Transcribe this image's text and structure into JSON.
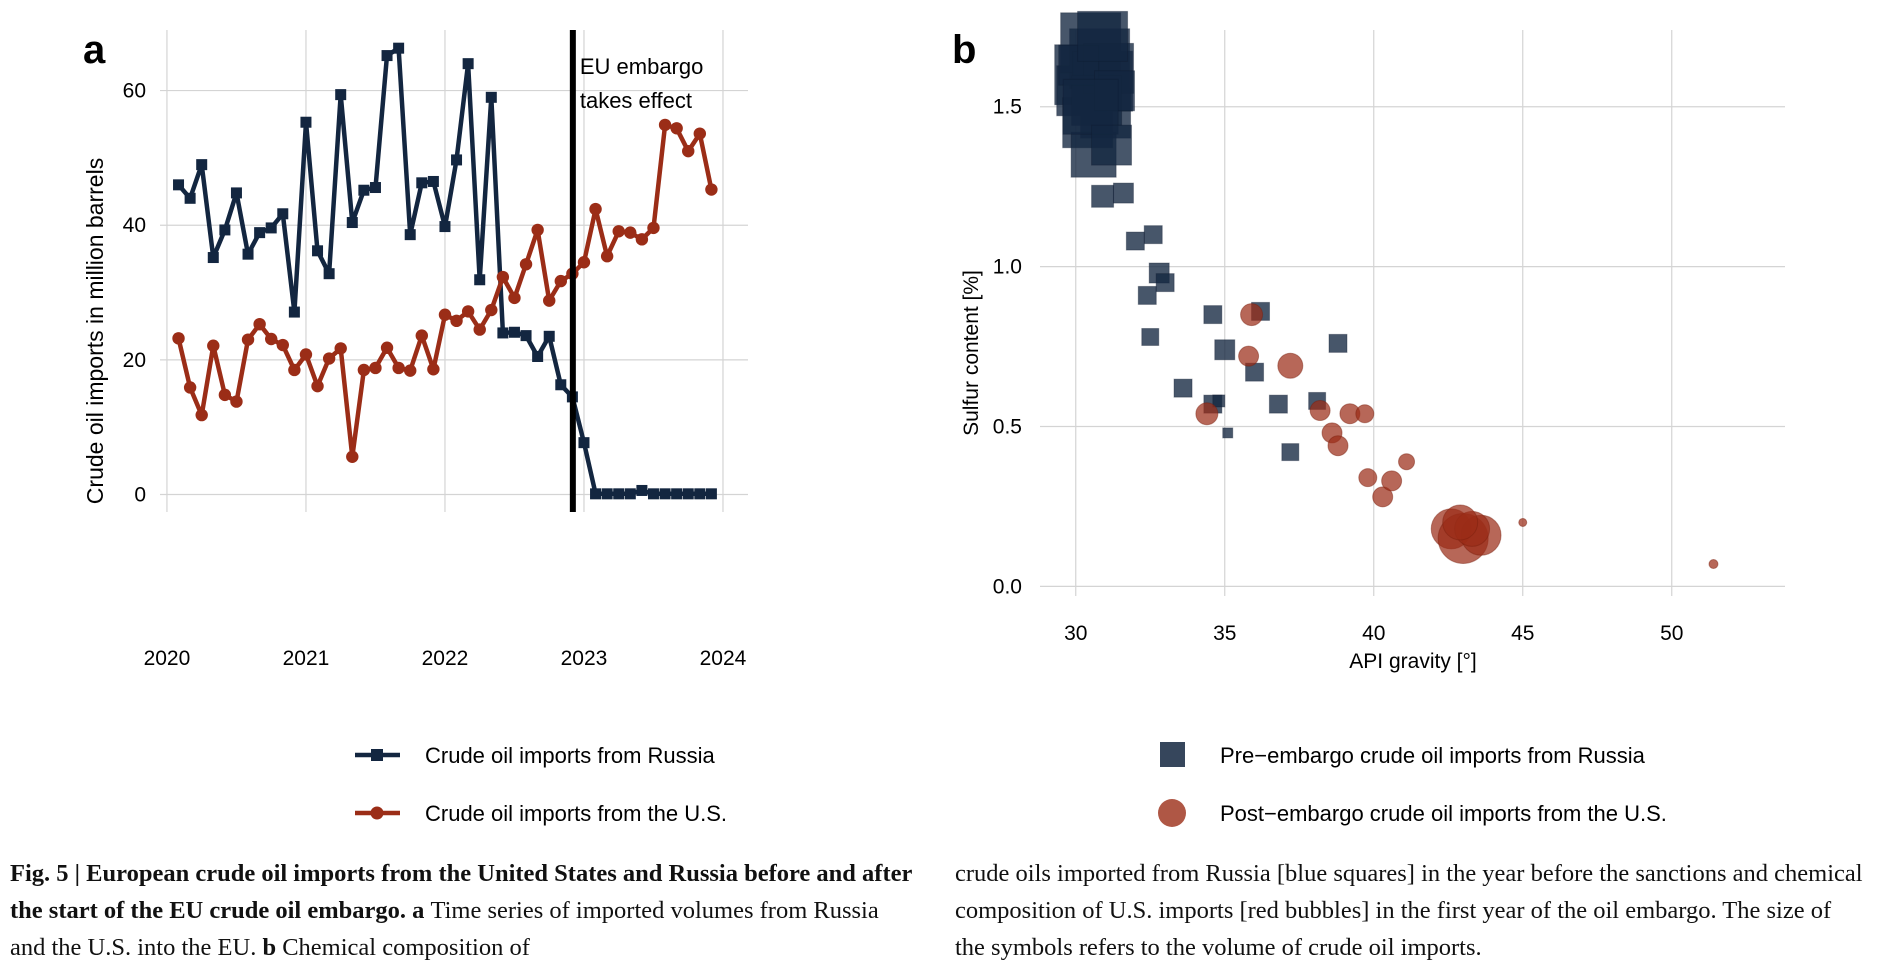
{
  "figure": {
    "caption": {
      "fig_label": "Fig. 5 | ",
      "title": "European crude oil imports from the United States and Russia before and after the start of the EU crude oil embargo.",
      "a_label": "a",
      "a_text": "Time series of imported volumes from Russia and the U.S. into the EU.",
      "b_label": "b",
      "b_text": "Chemical composition of crude oils imported from Russia [blue squares] in the year before the sanctions and chemical composition of U.S. imports [red bubbles] in the first year of the oil embargo. The size of the symbols refers to the volume of crude oil imports."
    }
  },
  "colors": {
    "russia": "#132640",
    "us": "#9b2d17",
    "grid": "#d4d4d4"
  },
  "chart_data": [
    {
      "panel_label": "a",
      "type": "line",
      "ylabel": "Crude oil imports in million barrels",
      "xlim": [
        2019.95,
        2024.18
      ],
      "ylim": [
        -2.6,
        69
      ],
      "yticks": [
        0,
        20,
        40,
        60
      ],
      "xticks": [
        2020,
        2021,
        2022,
        2023,
        2024
      ],
      "grid": true,
      "legend_position": "bottom",
      "x": [
        2020.0833,
        2020.1667,
        2020.25,
        2020.3333,
        2020.4167,
        2020.5,
        2020.5833,
        2020.6667,
        2020.75,
        2020.8333,
        2020.9167,
        2021.0,
        2021.0833,
        2021.1667,
        2021.25,
        2021.3333,
        2021.4167,
        2021.5,
        2021.5833,
        2021.6667,
        2021.75,
        2021.8333,
        2021.9167,
        2022.0,
        2022.0833,
        2022.1667,
        2022.25,
        2022.3333,
        2022.4167,
        2022.5,
        2022.5833,
        2022.6667,
        2022.75,
        2022.8333,
        2022.9167,
        2023.0,
        2023.0833,
        2023.1667,
        2023.25,
        2023.3333,
        2023.4167,
        2023.5,
        2023.5833,
        2023.6667,
        2023.75,
        2023.8333,
        2023.9167
      ],
      "series": [
        {
          "name": "Crude oil imports from Russia",
          "marker": "square",
          "values": [
            46,
            44,
            49,
            35.2,
            39.3,
            44.8,
            35.7,
            38.9,
            39.6,
            41.7,
            27.1,
            55.3,
            36.2,
            32.8,
            59.4,
            40.4,
            45.2,
            45.6,
            65.2,
            66.3,
            38.6,
            46.3,
            46.5,
            39.8,
            49.7,
            64,
            31.9,
            59,
            24,
            24.1,
            23.6,
            20.5,
            23.5,
            16.3,
            14.5,
            7.7,
            0.1,
            0.1,
            0.1,
            0.1,
            0.6,
            0.1,
            0.1,
            0.1,
            0.1,
            0.1,
            0.1
          ]
        },
        {
          "name": "Crude oil imports from the U.S.",
          "marker": "circle",
          "values": [
            23.2,
            15.9,
            11.8,
            22.1,
            14.8,
            13.8,
            23,
            25.3,
            23.1,
            22.2,
            18.5,
            20.8,
            16.1,
            20.2,
            21.7,
            5.6,
            18.5,
            18.8,
            21.8,
            18.8,
            18.4,
            23.6,
            18.6,
            26.7,
            25.8,
            27.2,
            24.5,
            27.4,
            32.3,
            29.2,
            34.2,
            39.3,
            28.8,
            31.7,
            32.8,
            34.5,
            42.4,
            35.4,
            39.1,
            38.9,
            37.9,
            39.6,
            54.9,
            54.4,
            51,
            53.6,
            45.3
          ]
        }
      ],
      "annotation": {
        "x": 2022.92,
        "label_line1": "EU embargo",
        "label_line2": "takes effect"
      }
    },
    {
      "panel_label": "b",
      "type": "scatter",
      "xlabel": "API gravity [°]",
      "ylabel": "Sulfur content [%]",
      "xlim": [
        28.8,
        53.8
      ],
      "ylim": [
        -0.03,
        1.74
      ],
      "xticks": [
        30,
        35,
        40,
        45,
        50
      ],
      "yticks": [
        0.0,
        0.5,
        1.0,
        1.5
      ],
      "ytick_labels": [
        "0.0",
        "0.5",
        "1.0",
        "1.5"
      ],
      "grid": true,
      "legend_position": "bottom",
      "size_encodes": "volume of crude oil imports",
      "series": [
        {
          "name": "Pre−embargo crude oil imports from Russia",
          "marker": "square",
          "points": [
            [
              30.3,
              1.6,
              6
            ],
            [
              30.8,
              1.65,
              6
            ],
            [
              30.2,
              1.55,
              5
            ],
            [
              31.0,
              1.48,
              5
            ],
            [
              30.5,
              1.7,
              6
            ],
            [
              30.9,
              1.58,
              6
            ],
            [
              30.4,
              1.45,
              5
            ],
            [
              31.1,
              1.62,
              5
            ],
            [
              30.7,
              1.52,
              5
            ],
            [
              30.1,
              1.63,
              4
            ],
            [
              30.6,
              1.35,
              4.5
            ],
            [
              31.3,
              1.55,
              4
            ],
            [
              30.9,
              1.72,
              5
            ],
            [
              30.5,
              1.5,
              5.5
            ],
            [
              31.2,
              1.38,
              4
            ],
            [
              30.9,
              1.22,
              2.2
            ],
            [
              31.6,
              1.23,
              2
            ],
            [
              32.6,
              1.1,
              1.8
            ],
            [
              32.0,
              1.08,
              1.8
            ],
            [
              32.8,
              0.98,
              2
            ],
            [
              32.4,
              0.91,
              1.8
            ],
            [
              33.0,
              0.95,
              1.8
            ],
            [
              34.6,
              0.85,
              1.8
            ],
            [
              36.2,
              0.86,
              1.8
            ],
            [
              32.5,
              0.78,
              1.7
            ],
            [
              35.0,
              0.74,
              2
            ],
            [
              36.0,
              0.67,
              1.8
            ],
            [
              38.8,
              0.76,
              1.8
            ],
            [
              33.6,
              0.62,
              1.8
            ],
            [
              34.6,
              0.57,
              1.8
            ],
            [
              35.1,
              0.48,
              1
            ],
            [
              34.8,
              0.58,
              1.2
            ],
            [
              36.8,
              0.57,
              1.8
            ],
            [
              38.1,
              0.58,
              1.7
            ],
            [
              37.2,
              0.42,
              1.7
            ]
          ]
        },
        {
          "name": "Post−embargo crude oil imports from the U.S.",
          "marker": "circle",
          "points": [
            [
              35.9,
              0.85,
              2.2
            ],
            [
              35.8,
              0.72,
              2
            ],
            [
              37.2,
              0.69,
              2.5
            ],
            [
              34.4,
              0.54,
              2.2
            ],
            [
              38.2,
              0.55,
              2
            ],
            [
              38.6,
              0.48,
              2
            ],
            [
              38.8,
              0.44,
              2
            ],
            [
              39.2,
              0.54,
              2
            ],
            [
              39.7,
              0.54,
              1.8
            ],
            [
              41.1,
              0.39,
              1.6
            ],
            [
              40.3,
              0.28,
              2
            ],
            [
              40.6,
              0.33,
              2
            ],
            [
              39.8,
              0.34,
              1.8
            ],
            [
              42.6,
              0.18,
              4
            ],
            [
              43.0,
              0.15,
              5
            ],
            [
              43.6,
              0.16,
              4
            ],
            [
              43.3,
              0.18,
              3.5
            ],
            [
              42.9,
              0.2,
              3.5
            ],
            [
              45.0,
              0.2,
              0.8
            ],
            [
              51.4,
              0.07,
              0.9
            ]
          ]
        }
      ]
    }
  ]
}
